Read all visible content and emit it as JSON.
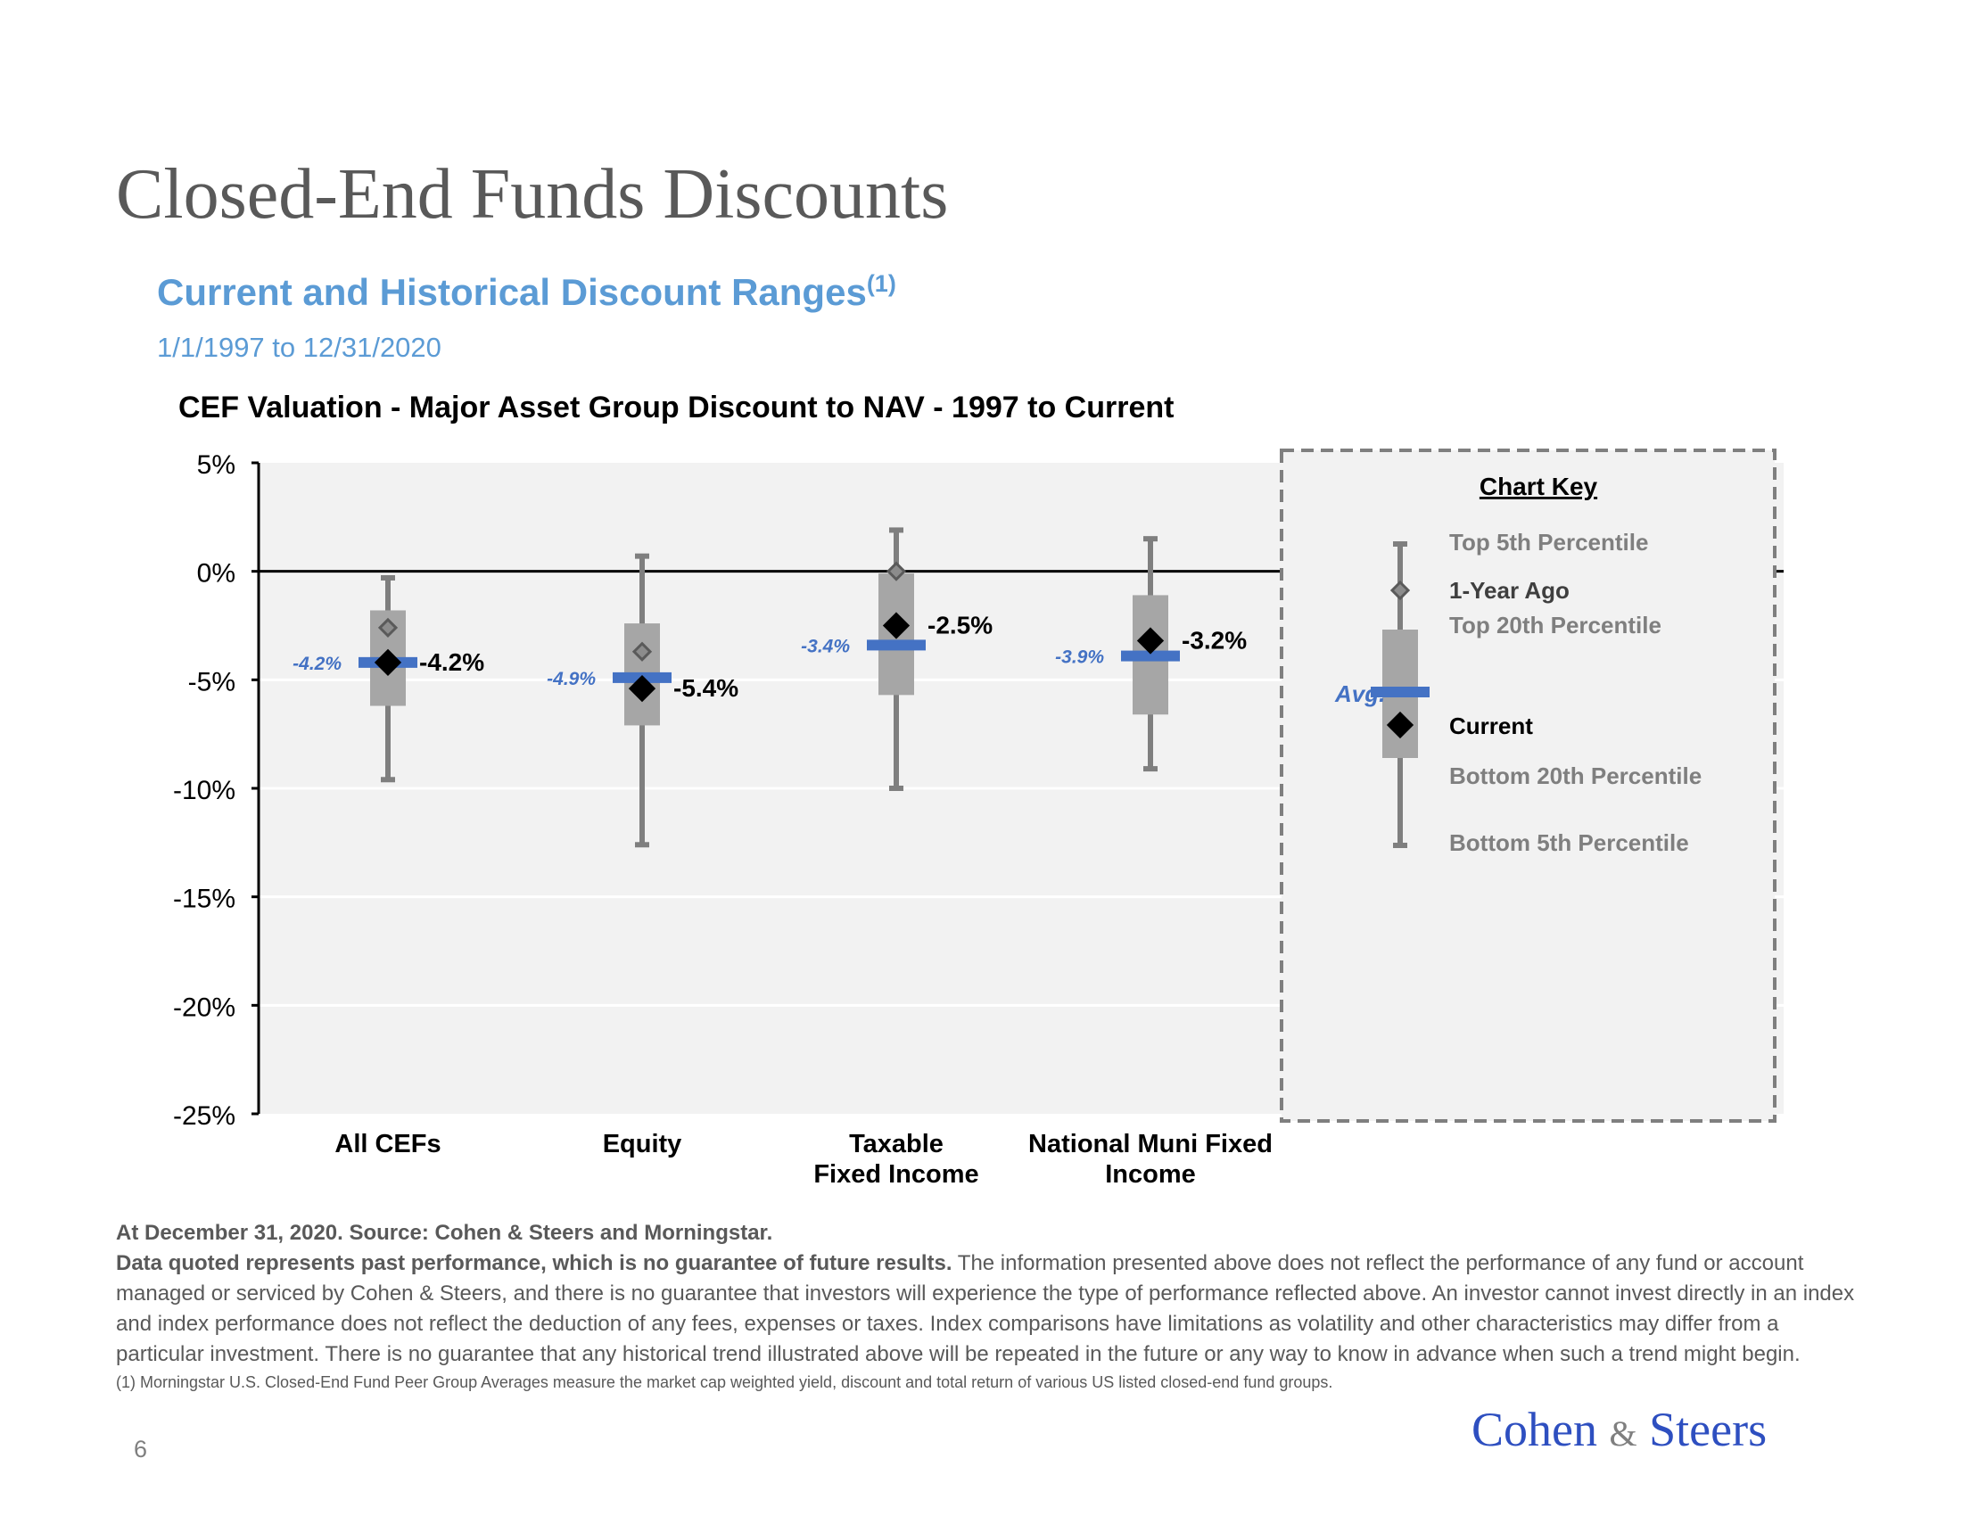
{
  "page": {
    "title": "Closed-End Funds Discounts",
    "subtitle": "Current and Historical Discount Ranges",
    "subtitle_note": "(1)",
    "date_range": "1/1/1997 to 12/31/2020",
    "page_number": "6",
    "logo": {
      "main": "Cohen",
      "amp": "&",
      "second": "Steers"
    }
  },
  "footnotes": {
    "source": "At December 31, 2020. Source: Cohen & Steers and Morningstar.",
    "disclaimer_bold": "Data quoted represents past performance, which is no guarantee of future results.",
    "disclaimer_rest": " The information presented above does not reflect the performance of any fund or account managed or serviced by Cohen & Steers, and there is no guarantee that investors will experience the type of performance reflected above. An investor cannot invest directly in an index and index performance does not reflect the deduction of any fees, expenses or taxes. Index comparisons have limitations as volatility and other characteristics may differ from a particular investment. There is no guarantee that any historical trend illustrated above will be repeated in the future or any way to know in advance when such a trend might begin.",
    "note1": "(1) Morningstar U.S. Closed-End Fund Peer Group Averages measure the market cap weighted yield, discount and total return of various US listed closed-end fund groups."
  },
  "colors": {
    "plot_bg": "#f2f2f2",
    "box": "#a6a6a6",
    "whisker": "#7f7f7f",
    "avg": "#4472c4",
    "current": "#000000",
    "year_ago": "#7f7f7f",
    "key_text": "#7f7f7f"
  },
  "chart_data": {
    "type": "box",
    "title": "CEF Valuation - Major Asset Group Discount to NAV - 1997 to Current",
    "y_axis": {
      "min": -25,
      "max": 5,
      "step": 5,
      "tick_labels": [
        "5%",
        "0%",
        "-5%",
        "-10%",
        "-15%",
        "-20%",
        "-25%"
      ]
    },
    "grid": true,
    "categories": [
      {
        "name": [
          "All CEFs"
        ],
        "top5": -0.3,
        "top20": -1.8,
        "bottom20": -6.2,
        "bottom5": -9.6,
        "avg": -4.2,
        "avg_label": "-4.2%",
        "year_ago": -2.6,
        "current": -4.2,
        "current_label": "-4.2%"
      },
      {
        "name": [
          "Equity"
        ],
        "top5": 0.7,
        "top20": -2.4,
        "bottom20": -7.1,
        "bottom5": -12.6,
        "avg": -4.9,
        "avg_label": "-4.9%",
        "year_ago": -3.7,
        "current": -5.4,
        "current_label": "-5.4%"
      },
      {
        "name": [
          "Taxable",
          "Fixed Income"
        ],
        "top5": 1.9,
        "top20": -0.1,
        "bottom20": -5.7,
        "bottom5": -10.0,
        "avg": -3.4,
        "avg_label": "-3.4%",
        "year_ago": 0.0,
        "current": -2.5,
        "current_label": "-2.5%"
      },
      {
        "name": [
          "National Muni Fixed",
          "Income"
        ],
        "top5": 1.5,
        "top20": -1.1,
        "bottom20": -6.6,
        "bottom5": -9.1,
        "avg": -3.9,
        "avg_label": "-3.9%",
        "year_ago": -3.2,
        "current": -3.2,
        "current_label": "-3.2%"
      }
    ],
    "key": {
      "title": "Chart Key",
      "avg_label": "Avg.",
      "labels": [
        "Top 5th Percentile",
        "1-Year Ago",
        "Top 20th Percentile",
        "Current",
        "Bottom 20th Percentile",
        "Bottom 5th Percentile"
      ]
    }
  }
}
